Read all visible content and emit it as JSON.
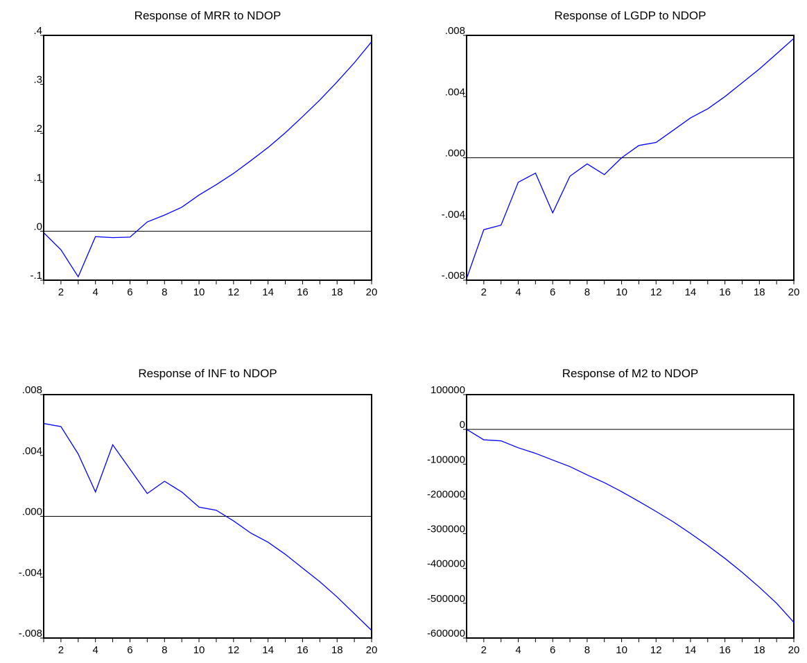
{
  "colors": {
    "series": "#0000ff",
    "axes": "#000000",
    "background": "#ffffff"
  },
  "chart_data": [
    {
      "type": "line",
      "title": "Response of MRR to NDOP",
      "x": [
        1,
        2,
        3,
        4,
        5,
        6,
        7,
        8,
        9,
        10,
        11,
        12,
        13,
        14,
        15,
        16,
        17,
        18,
        19,
        20
      ],
      "xticks": [
        "2",
        "4",
        "6",
        "8",
        "10",
        "12",
        "14",
        "16",
        "18",
        "20"
      ],
      "series": [
        {
          "values": [
            -0.003,
            -0.038,
            -0.093,
            -0.011,
            -0.013,
            -0.012,
            0.019,
            0.033,
            0.049,
            0.074,
            0.095,
            0.118,
            0.144,
            0.171,
            0.201,
            0.234,
            0.268,
            0.305,
            0.344,
            0.387
          ]
        }
      ],
      "ylim": [
        -0.1,
        0.4
      ],
      "yticks": [
        -0.1,
        0.0,
        0.1,
        0.2,
        0.3,
        0.4
      ],
      "ytick_labels": [
        "-.1",
        ".0",
        ".1",
        ".2",
        ".3",
        ".4"
      ],
      "zero_line": true
    },
    {
      "type": "line",
      "title": "Response of LGDP to NDOP",
      "x": [
        1,
        2,
        3,
        4,
        5,
        6,
        7,
        8,
        9,
        10,
        11,
        12,
        13,
        14,
        15,
        16,
        17,
        18,
        19,
        20
      ],
      "xticks": [
        "2",
        "4",
        "6",
        "8",
        "10",
        "12",
        "14",
        "16",
        "18",
        "20"
      ],
      "series": [
        {
          "values": [
            -0.0079,
            -0.0047,
            -0.0044,
            -0.0016,
            -0.001,
            -0.0036,
            -0.0012,
            -0.0004,
            -0.0011,
            0.0,
            0.0008,
            0.001,
            0.0018,
            0.0026,
            0.0032,
            0.004,
            0.0049,
            0.0058,
            0.0068,
            0.0078
          ]
        }
      ],
      "ylim": [
        -0.008,
        0.008
      ],
      "yticks": [
        -0.008,
        -0.004,
        0.0,
        0.004,
        0.008
      ],
      "ytick_labels": [
        "-.008",
        "-.004",
        ".000",
        ".004",
        ".008"
      ],
      "zero_line": true
    },
    {
      "type": "line",
      "title": "Response of INF to NDOP",
      "x": [
        1,
        2,
        3,
        4,
        5,
        6,
        7,
        8,
        9,
        10,
        11,
        12,
        13,
        14,
        15,
        16,
        17,
        18,
        19,
        20
      ],
      "xticks": [
        "2",
        "4",
        "6",
        "8",
        "10",
        "12",
        "14",
        "16",
        "18",
        "20"
      ],
      "series": [
        {
          "values": [
            0.0061,
            0.0059,
            0.0041,
            0.0016,
            0.0047,
            0.0031,
            0.0015,
            0.0023,
            0.0016,
            0.0006,
            0.0004,
            -0.0003,
            -0.0011,
            -0.0017,
            -0.0025,
            -0.0034,
            -0.0043,
            -0.0053,
            -0.0064,
            -0.0075
          ]
        }
      ],
      "ylim": [
        -0.008,
        0.008
      ],
      "yticks": [
        -0.008,
        -0.004,
        0.0,
        0.004,
        0.008
      ],
      "ytick_labels": [
        "-.008",
        "-.004",
        ".000",
        ".004",
        ".008"
      ],
      "zero_line": true
    },
    {
      "type": "line",
      "title": "Response of M2 to NDOP",
      "x": [
        1,
        2,
        3,
        4,
        5,
        6,
        7,
        8,
        9,
        10,
        11,
        12,
        13,
        14,
        15,
        16,
        17,
        18,
        19,
        20
      ],
      "xticks": [
        "2",
        "4",
        "6",
        "8",
        "10",
        "12",
        "14",
        "16",
        "18",
        "20"
      ],
      "series": [
        {
          "values": [
            0,
            -30000,
            -33000,
            -53000,
            -69000,
            -88000,
            -107000,
            -131000,
            -153000,
            -179000,
            -207000,
            -236000,
            -266000,
            -299000,
            -334000,
            -371000,
            -411000,
            -454000,
            -500000,
            -555000
          ]
        }
      ],
      "ylim": [
        -600000,
        100000
      ],
      "yticks": [
        -600000,
        -500000,
        -400000,
        -300000,
        -200000,
        -100000,
        0,
        100000
      ],
      "ytick_labels": [
        "-600000",
        "-500000",
        "-400000",
        "-300000",
        "-200000",
        "-100000",
        "0",
        "100000"
      ],
      "zero_line": true
    }
  ]
}
